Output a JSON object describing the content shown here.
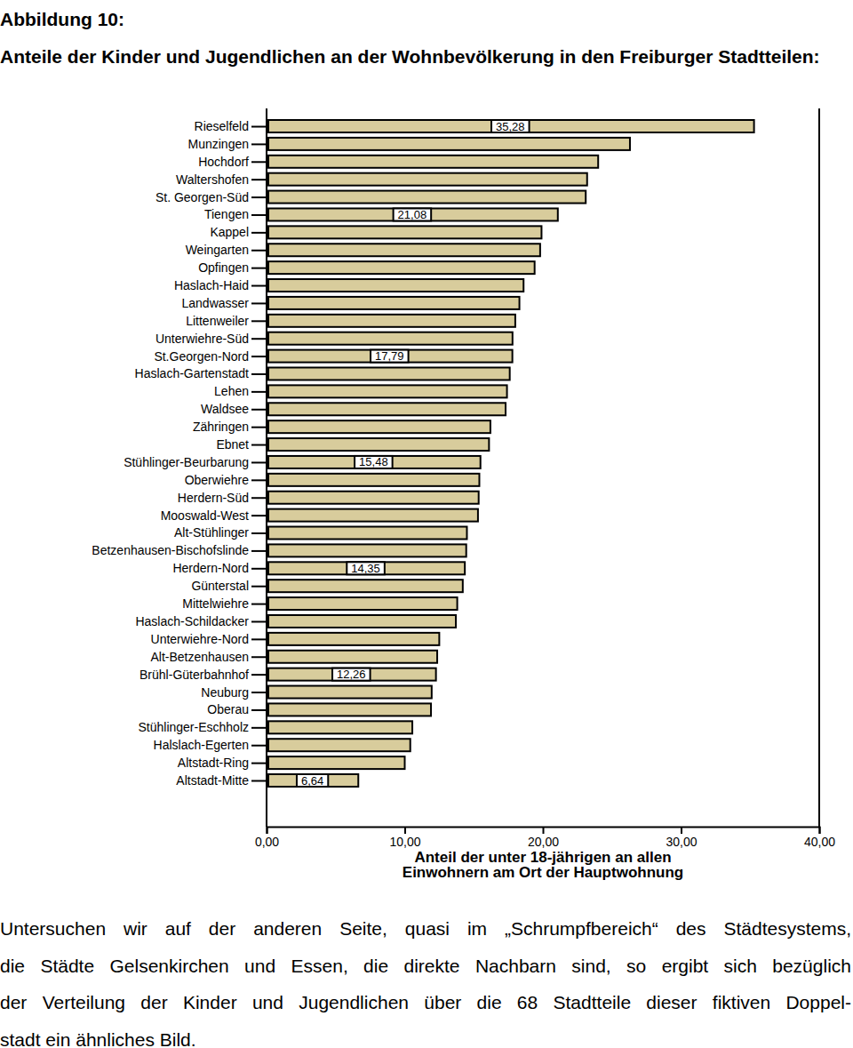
{
  "chart_data": {
    "type": "bar",
    "orientation": "horizontal",
    "title": "Abbildung 10:",
    "subtitle": "Anteile der Kinder und Jugendlichen an der Wohnbevölkerung in den Freiburger Stadtteilen:",
    "xlabel": "Anteil der unter 18-jährigen an allen\nEinwohnern am Ort der Hauptwohnung",
    "categories": [
      "Rieselfeld",
      "Munzingen",
      "Hochdorf",
      "Waltershofen",
      "St. Georgen-Süd",
      "Tiengen",
      "Kappel",
      "Weingarten",
      "Opfingen",
      "Haslach-Haid",
      "Landwasser",
      "Littenweiler",
      "Unterwiehre-Süd",
      "St.Georgen-Nord",
      "Haslach-Gartenstadt",
      "Lehen",
      "Waldsee",
      "Zähringen",
      "Ebnet",
      "Stühlinger-Beurbarung",
      "Oberwiehre",
      "Herdern-Süd",
      "Mooswald-West",
      "Alt-Stühlinger",
      "Betzenhausen-Bischofslinde",
      "Herdern-Nord",
      "Günterstal",
      "Mittelwiehre",
      "Haslach-Schildacker",
      "Unterwiehre-Nord",
      "Alt-Betzenhausen",
      "Brühl-Güterbahnhof",
      "Neuburg",
      "Oberau",
      "Stühlinger-Eschholz",
      "Halslach-Egerten",
      "Altstadt-Ring",
      "Altstadt-Mitte"
    ],
    "values": [
      35.28,
      26.3,
      24.0,
      23.2,
      23.1,
      21.08,
      19.9,
      19.8,
      19.4,
      18.6,
      18.3,
      18.0,
      17.8,
      17.79,
      17.6,
      17.4,
      17.3,
      16.2,
      16.1,
      15.48,
      15.4,
      15.35,
      15.3,
      14.5,
      14.45,
      14.35,
      14.2,
      13.8,
      13.7,
      12.5,
      12.35,
      12.26,
      11.95,
      11.9,
      10.55,
      10.4,
      10.0,
      6.64
    ],
    "value_labels": [
      "35,28",
      null,
      null,
      null,
      null,
      "21,08",
      null,
      null,
      null,
      null,
      null,
      null,
      null,
      "17,79",
      null,
      null,
      null,
      null,
      null,
      "15,48",
      null,
      null,
      null,
      null,
      null,
      "14,35",
      null,
      null,
      null,
      null,
      null,
      "12,26",
      null,
      null,
      null,
      null,
      null,
      "6,64"
    ],
    "data_labels": true,
    "color": "#d8cc9c",
    "xlim": [
      0,
      40
    ],
    "xticks": [
      {
        "value": 0,
        "label": "0,00"
      },
      {
        "value": 10,
        "label": "10,00"
      },
      {
        "value": 20,
        "label": "20,00"
      },
      {
        "value": 30,
        "label": "30,00"
      },
      {
        "value": 40,
        "label": "40,00"
      }
    ],
    "grid": false
  },
  "paragraph": [
    "Untersuchen wir auf der anderen Seite, quasi im „Schrumpfbereich“ des Städtesystems,",
    "die Städte Gelsenkirchen und Essen, die direkte Nachbarn sind, so ergibt sich bezüglich",
    "der Verteilung der Kinder und Jugendlichen über die 68 Stadtteile dieser fiktiven Doppel-",
    "stadt ein ähnliches Bild."
  ]
}
